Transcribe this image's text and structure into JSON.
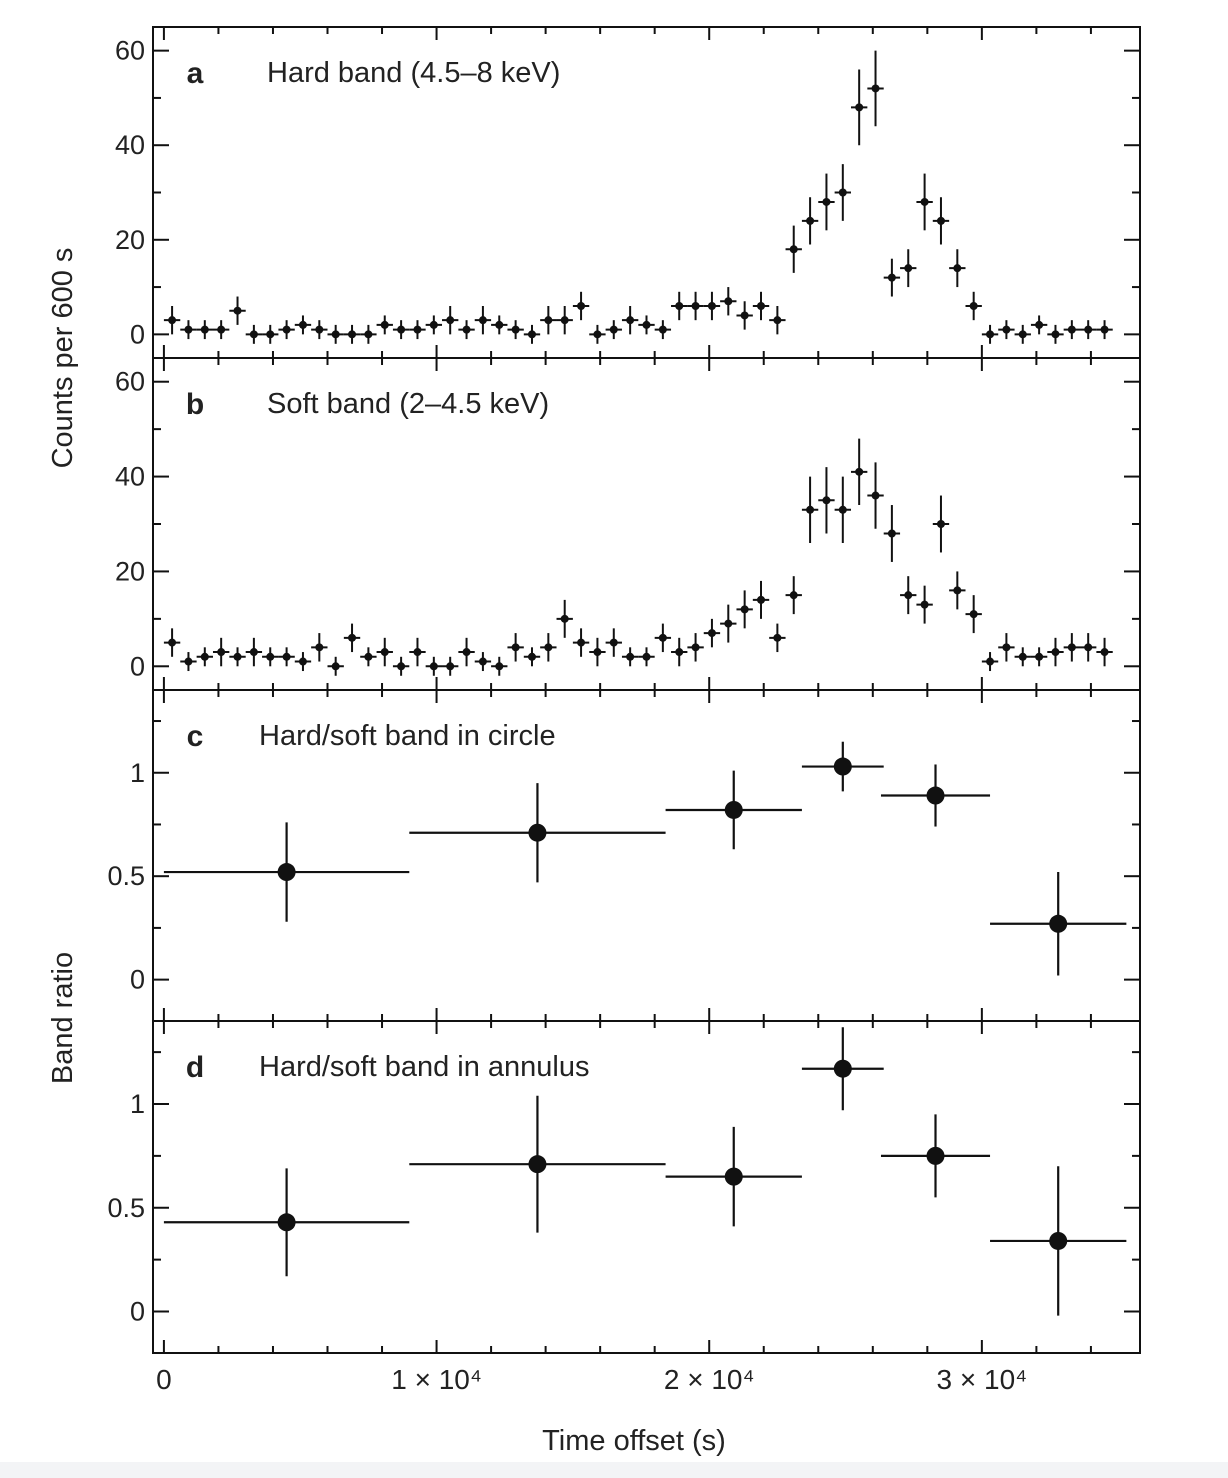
{
  "figure": {
    "ylabel_top": "Counts per 600 s",
    "ylabel_bottom": "Band ratio",
    "xlabel": "Time offset (s)",
    "x_ticks": [
      {
        "value": 0,
        "label": "0"
      },
      {
        "value": 10000,
        "label": "1 × 10⁴"
      },
      {
        "value": 20000,
        "label": "2 × 10⁴"
      },
      {
        "value": 30000,
        "label": "3 × 10⁴"
      }
    ]
  },
  "chart_data": [
    {
      "type": "scatter",
      "panel": "a",
      "letter": "a",
      "title": "Hard band (4.5–8 keV)",
      "xlim": [
        -400,
        35800
      ],
      "ylim": [
        -5,
        65
      ],
      "y_ticks": [
        0,
        20,
        40,
        60
      ],
      "x_halfwidth": 300,
      "points": [
        {
          "x": 300,
          "y": 3,
          "err": 3
        },
        {
          "x": 900,
          "y": 1,
          "err": 2
        },
        {
          "x": 1500,
          "y": 1,
          "err": 2
        },
        {
          "x": 2100,
          "y": 1,
          "err": 2
        },
        {
          "x": 2700,
          "y": 5,
          "err": 3
        },
        {
          "x": 3300,
          "y": 0,
          "err": 2
        },
        {
          "x": 3900,
          "y": 0,
          "err": 2
        },
        {
          "x": 4500,
          "y": 1,
          "err": 2
        },
        {
          "x": 5100,
          "y": 2,
          "err": 2
        },
        {
          "x": 5700,
          "y": 1,
          "err": 2
        },
        {
          "x": 6300,
          "y": 0,
          "err": 2
        },
        {
          "x": 6900,
          "y": 0,
          "err": 2
        },
        {
          "x": 7500,
          "y": 0,
          "err": 2
        },
        {
          "x": 8100,
          "y": 2,
          "err": 2
        },
        {
          "x": 8700,
          "y": 1,
          "err": 2
        },
        {
          "x": 9300,
          "y": 1,
          "err": 2
        },
        {
          "x": 9900,
          "y": 2,
          "err": 2
        },
        {
          "x": 10500,
          "y": 3,
          "err": 3
        },
        {
          "x": 11100,
          "y": 1,
          "err": 2
        },
        {
          "x": 11700,
          "y": 3,
          "err": 3
        },
        {
          "x": 12300,
          "y": 2,
          "err": 2
        },
        {
          "x": 12900,
          "y": 1,
          "err": 2
        },
        {
          "x": 13500,
          "y": 0,
          "err": 2
        },
        {
          "x": 14100,
          "y": 3,
          "err": 3
        },
        {
          "x": 14700,
          "y": 3,
          "err": 3
        },
        {
          "x": 15300,
          "y": 6,
          "err": 3
        },
        {
          "x": 15900,
          "y": 0,
          "err": 2
        },
        {
          "x": 16500,
          "y": 1,
          "err": 2
        },
        {
          "x": 17100,
          "y": 3,
          "err": 3
        },
        {
          "x": 17700,
          "y": 2,
          "err": 2
        },
        {
          "x": 18300,
          "y": 1,
          "err": 2
        },
        {
          "x": 18900,
          "y": 6,
          "err": 3
        },
        {
          "x": 19500,
          "y": 6,
          "err": 3
        },
        {
          "x": 20100,
          "y": 6,
          "err": 3
        },
        {
          "x": 20700,
          "y": 7,
          "err": 3
        },
        {
          "x": 21300,
          "y": 4,
          "err": 3
        },
        {
          "x": 21900,
          "y": 6,
          "err": 3
        },
        {
          "x": 22500,
          "y": 3,
          "err": 3
        },
        {
          "x": 23100,
          "y": 18,
          "err": 5
        },
        {
          "x": 23700,
          "y": 24,
          "err": 5
        },
        {
          "x": 24300,
          "y": 28,
          "err": 6
        },
        {
          "x": 24900,
          "y": 30,
          "err": 6
        },
        {
          "x": 25500,
          "y": 48,
          "err": 8
        },
        {
          "x": 26100,
          "y": 52,
          "err": 8
        },
        {
          "x": 26700,
          "y": 12,
          "err": 4
        },
        {
          "x": 27300,
          "y": 14,
          "err": 4
        },
        {
          "x": 27900,
          "y": 28,
          "err": 6
        },
        {
          "x": 28500,
          "y": 24,
          "err": 5
        },
        {
          "x": 29100,
          "y": 14,
          "err": 4
        },
        {
          "x": 29700,
          "y": 6,
          "err": 3
        },
        {
          "x": 30300,
          "y": 0,
          "err": 2
        },
        {
          "x": 30900,
          "y": 1,
          "err": 2
        },
        {
          "x": 31500,
          "y": 0,
          "err": 2
        },
        {
          "x": 32100,
          "y": 2,
          "err": 2
        },
        {
          "x": 32700,
          "y": 0,
          "err": 2
        },
        {
          "x": 33300,
          "y": 1,
          "err": 2
        },
        {
          "x": 33900,
          "y": 1,
          "err": 2
        },
        {
          "x": 34500,
          "y": 1,
          "err": 2
        }
      ]
    },
    {
      "type": "scatter",
      "panel": "b",
      "letter": "b",
      "title": "Soft band (2–4.5 keV)",
      "xlim": [
        -400,
        35800
      ],
      "ylim": [
        -5,
        65
      ],
      "y_ticks": [
        0,
        20,
        40,
        60
      ],
      "x_halfwidth": 300,
      "points": [
        {
          "x": 300,
          "y": 5,
          "err": 3
        },
        {
          "x": 900,
          "y": 1,
          "err": 2
        },
        {
          "x": 1500,
          "y": 2,
          "err": 2
        },
        {
          "x": 2100,
          "y": 3,
          "err": 3
        },
        {
          "x": 2700,
          "y": 2,
          "err": 2
        },
        {
          "x": 3300,
          "y": 3,
          "err": 3
        },
        {
          "x": 3900,
          "y": 2,
          "err": 2
        },
        {
          "x": 4500,
          "y": 2,
          "err": 2
        },
        {
          "x": 5100,
          "y": 1,
          "err": 2
        },
        {
          "x": 5700,
          "y": 4,
          "err": 3
        },
        {
          "x": 6300,
          "y": 0,
          "err": 2
        },
        {
          "x": 6900,
          "y": 6,
          "err": 3
        },
        {
          "x": 7500,
          "y": 2,
          "err": 2
        },
        {
          "x": 8100,
          "y": 3,
          "err": 3
        },
        {
          "x": 8700,
          "y": 0,
          "err": 2
        },
        {
          "x": 9300,
          "y": 3,
          "err": 3
        },
        {
          "x": 9900,
          "y": 0,
          "err": 2
        },
        {
          "x": 10500,
          "y": 0,
          "err": 2
        },
        {
          "x": 11100,
          "y": 3,
          "err": 3
        },
        {
          "x": 11700,
          "y": 1,
          "err": 2
        },
        {
          "x": 12300,
          "y": 0,
          "err": 2
        },
        {
          "x": 12900,
          "y": 4,
          "err": 3
        },
        {
          "x": 13500,
          "y": 2,
          "err": 2
        },
        {
          "x": 14100,
          "y": 4,
          "err": 3
        },
        {
          "x": 14700,
          "y": 10,
          "err": 4
        },
        {
          "x": 15300,
          "y": 5,
          "err": 3
        },
        {
          "x": 15900,
          "y": 3,
          "err": 3
        },
        {
          "x": 16500,
          "y": 5,
          "err": 3
        },
        {
          "x": 17100,
          "y": 2,
          "err": 2
        },
        {
          "x": 17700,
          "y": 2,
          "err": 2
        },
        {
          "x": 18300,
          "y": 6,
          "err": 3
        },
        {
          "x": 18900,
          "y": 3,
          "err": 3
        },
        {
          "x": 19500,
          "y": 4,
          "err": 3
        },
        {
          "x": 20100,
          "y": 7,
          "err": 3
        },
        {
          "x": 20700,
          "y": 9,
          "err": 4
        },
        {
          "x": 21300,
          "y": 12,
          "err": 4
        },
        {
          "x": 21900,
          "y": 14,
          "err": 4
        },
        {
          "x": 22500,
          "y": 6,
          "err": 3
        },
        {
          "x": 23100,
          "y": 15,
          "err": 4
        },
        {
          "x": 23700,
          "y": 33,
          "err": 7
        },
        {
          "x": 24300,
          "y": 35,
          "err": 7
        },
        {
          "x": 24900,
          "y": 33,
          "err": 7
        },
        {
          "x": 25500,
          "y": 41,
          "err": 7
        },
        {
          "x": 26100,
          "y": 36,
          "err": 7
        },
        {
          "x": 26700,
          "y": 28,
          "err": 6
        },
        {
          "x": 27300,
          "y": 15,
          "err": 4
        },
        {
          "x": 27900,
          "y": 13,
          "err": 4
        },
        {
          "x": 28500,
          "y": 30,
          "err": 6
        },
        {
          "x": 29100,
          "y": 16,
          "err": 4
        },
        {
          "x": 29700,
          "y": 11,
          "err": 4
        },
        {
          "x": 30300,
          "y": 1,
          "err": 2
        },
        {
          "x": 30900,
          "y": 4,
          "err": 3
        },
        {
          "x": 31500,
          "y": 2,
          "err": 2
        },
        {
          "x": 32100,
          "y": 2,
          "err": 2
        },
        {
          "x": 32700,
          "y": 3,
          "err": 3
        },
        {
          "x": 33300,
          "y": 4,
          "err": 3
        },
        {
          "x": 33900,
          "y": 4,
          "err": 3
        },
        {
          "x": 34500,
          "y": 3,
          "err": 3
        }
      ]
    },
    {
      "type": "scatter",
      "panel": "c",
      "letter": "c",
      "title": "Hard/soft band in circle",
      "xlim": [
        -400,
        35800
      ],
      "ylim": [
        -0.2,
        1.4
      ],
      "y_ticks": [
        0,
        0.5,
        1
      ],
      "y_tick_labels": [
        "0",
        "0.5",
        "1"
      ],
      "points": [
        {
          "x": 4500,
          "xerr": 4500,
          "y": 0.52,
          "yerr": 0.24
        },
        {
          "x": 13700,
          "xerr": 4700,
          "y": 0.71,
          "yerr": 0.24
        },
        {
          "x": 20900,
          "xerr": 2500,
          "y": 0.82,
          "yerr": 0.19
        },
        {
          "x": 24900,
          "xerr": 1500,
          "y": 1.03,
          "yerr": 0.12
        },
        {
          "x": 28300,
          "xerr": 2000,
          "y": 0.89,
          "yerr": 0.15
        },
        {
          "x": 32800,
          "xerr": 2500,
          "y": 0.27,
          "yerr": 0.25
        }
      ]
    },
    {
      "type": "scatter",
      "panel": "d",
      "letter": "d",
      "title": "Hard/soft band in annulus",
      "xlim": [
        -400,
        35800
      ],
      "ylim": [
        -0.2,
        1.4
      ],
      "y_ticks": [
        0,
        0.5,
        1
      ],
      "y_tick_labels": [
        "0",
        "0.5",
        "1"
      ],
      "points": [
        {
          "x": 4500,
          "xerr": 4500,
          "y": 0.43,
          "yerr": 0.26
        },
        {
          "x": 13700,
          "xerr": 4700,
          "y": 0.71,
          "yerr": 0.33
        },
        {
          "x": 20900,
          "xerr": 2500,
          "y": 0.65,
          "yerr": 0.24
        },
        {
          "x": 24900,
          "xerr": 1500,
          "y": 1.17,
          "yerr": 0.2
        },
        {
          "x": 28300,
          "xerr": 2000,
          "y": 0.75,
          "yerr": 0.2
        },
        {
          "x": 32800,
          "xerr": 2500,
          "y": 0.34,
          "yerr": 0.36
        }
      ]
    }
  ]
}
